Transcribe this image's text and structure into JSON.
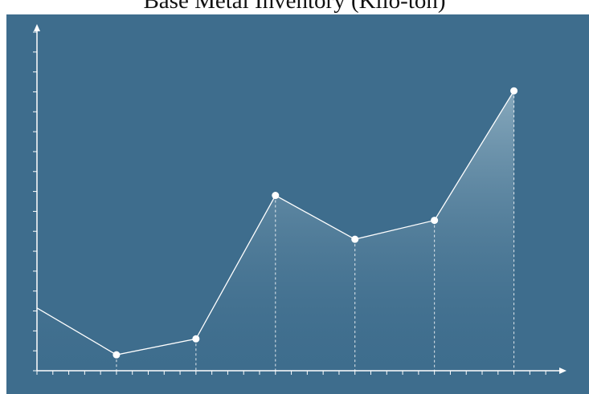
{
  "title": "Base Metal Inventory (Kilo-ton)",
  "colors": {
    "background": "#3e6d8d",
    "line": "#ffffff",
    "area_top": "#9fbccc",
    "area_bottom": "#3e6d8d"
  },
  "chart_data": {
    "type": "area",
    "title": "Base Metal Inventory (Kilo-ton)",
    "xlabel": "",
    "ylabel": "",
    "x": [
      0,
      1,
      2,
      3,
      4,
      5,
      6
    ],
    "series": [
      {
        "values": [
          3.15,
          0.8,
          1.6,
          8.8,
          6.6,
          7.55,
          14.05
        ]
      }
    ],
    "xlim": [
      0,
      6.55
    ],
    "ylim": [
      0,
      17
    ],
    "x_ticks": 32,
    "y_ticks": 17,
    "grid": false,
    "markers": true,
    "drop_lines": true
  }
}
